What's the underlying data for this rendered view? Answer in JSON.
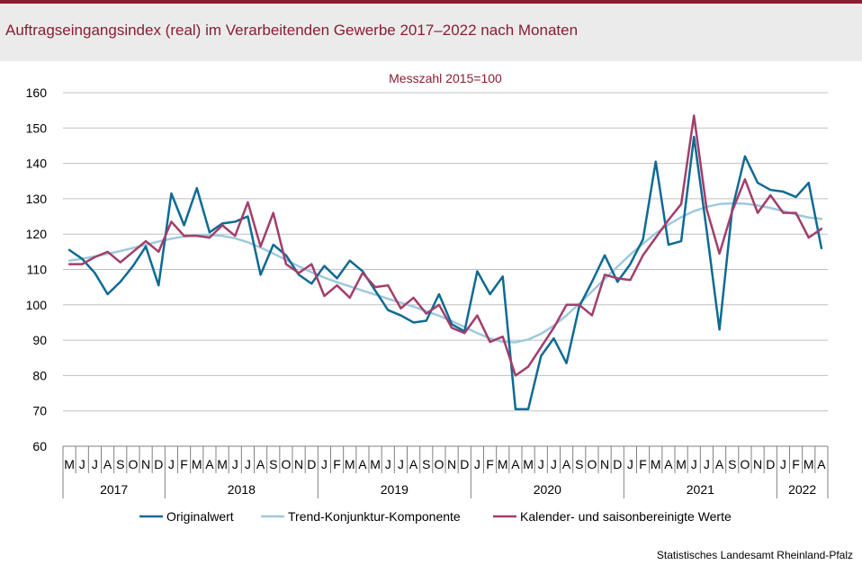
{
  "title": "Auftragseingangsindex (real) im Verarbeitenden Gewerbe 2017–2022 nach Monaten",
  "source": "Statistisches Landesamt Rheinland-Pfalz",
  "chart_data": {
    "type": "line",
    "subtitle": "Messzahl 2015=100",
    "ylim": [
      60,
      160
    ],
    "yticks": [
      60,
      70,
      80,
      90,
      100,
      110,
      120,
      130,
      140,
      150,
      160
    ],
    "grid": true,
    "legend_position": "bottom",
    "x": [
      "M",
      "J",
      "J",
      "A",
      "S",
      "O",
      "N",
      "D",
      "J",
      "F",
      "M",
      "A",
      "M",
      "J",
      "J",
      "A",
      "S",
      "O",
      "N",
      "D",
      "J",
      "F",
      "M",
      "A",
      "M",
      "J",
      "J",
      "A",
      "S",
      "O",
      "N",
      "D",
      "J",
      "F",
      "M",
      "A",
      "M",
      "J",
      "J",
      "A",
      "S",
      "O",
      "N",
      "D",
      "J",
      "F",
      "M",
      "A",
      "M",
      "J",
      "J",
      "A",
      "S",
      "O",
      "N",
      "D",
      "J",
      "F",
      "M",
      "A"
    ],
    "years": [
      {
        "label": "2017",
        "start": 0,
        "count": 8
      },
      {
        "label": "2018",
        "start": 8,
        "count": 12
      },
      {
        "label": "2019",
        "start": 20,
        "count": 12
      },
      {
        "label": "2020",
        "start": 32,
        "count": 12
      },
      {
        "label": "2021",
        "start": 44,
        "count": 12
      },
      {
        "label": "2022",
        "start": 56,
        "count": 4
      }
    ],
    "series": [
      {
        "name": "Originalwert",
        "color": "#0f6a93",
        "values": [
          115.5,
          113,
          109,
          103,
          106.5,
          111,
          116.5,
          105.5,
          131.5,
          122.5,
          133,
          120.5,
          123,
          123.5,
          125,
          108.5,
          117,
          114,
          108.5,
          106,
          111,
          107.5,
          112.5,
          109.5,
          104,
          98.5,
          97,
          95,
          95.5,
          103,
          94.5,
          92.5,
          109.5,
          103,
          108,
          70.5,
          70.5,
          85.5,
          90.5,
          83.5,
          99.5,
          106.5,
          114,
          106.5,
          111.5,
          118.5,
          140.5,
          117,
          118,
          147.5,
          121,
          93,
          127,
          142,
          134.5,
          132.5,
          132,
          130.5,
          134.5,
          116
        ]
      },
      {
        "name": "Trend-Konjunktur-Komponente",
        "color": "#9ec9dd",
        "values": [
          112.5,
          113,
          113.7,
          114.4,
          115.2,
          116.1,
          117,
          117.9,
          118.7,
          119.3,
          119.7,
          119.8,
          119.5,
          118.8,
          117.7,
          116.2,
          114.5,
          112.7,
          110.9,
          109.2,
          107.7,
          106.4,
          105.2,
          104,
          102.9,
          101.7,
          100.6,
          99.5,
          98.2,
          96.9,
          95.4,
          93.7,
          92,
          90.5,
          89.5,
          89.4,
          90.2,
          91.8,
          94.1,
          97,
          100.3,
          103.8,
          107.3,
          110.8,
          114.2,
          117.3,
          120.2,
          122.7,
          124.8,
          126.5,
          127.7,
          128.5,
          128.7,
          128.6,
          128.1,
          127.4,
          126.5,
          125.5,
          124.7,
          124.3
        ]
      },
      {
        "name": "Kalender- und saisonbereinigte Werte",
        "color": "#a23e6c",
        "values": [
          111.5,
          111.5,
          113.5,
          115,
          112,
          115,
          118,
          115,
          123.5,
          119.5,
          119.5,
          119,
          122.5,
          119.5,
          129,
          116.5,
          126,
          111.5,
          109,
          111.5,
          102.5,
          105.5,
          102,
          109,
          105,
          105.5,
          99,
          102,
          97.5,
          100,
          93.5,
          92,
          97,
          89.5,
          91,
          80,
          82.5,
          88,
          93.5,
          100,
          100,
          97,
          108.5,
          107.5,
          107,
          114,
          119,
          124,
          128.5,
          153.5,
          127,
          114.5,
          126.5,
          135.5,
          126,
          131,
          126,
          126,
          119,
          121.5
        ]
      }
    ]
  }
}
